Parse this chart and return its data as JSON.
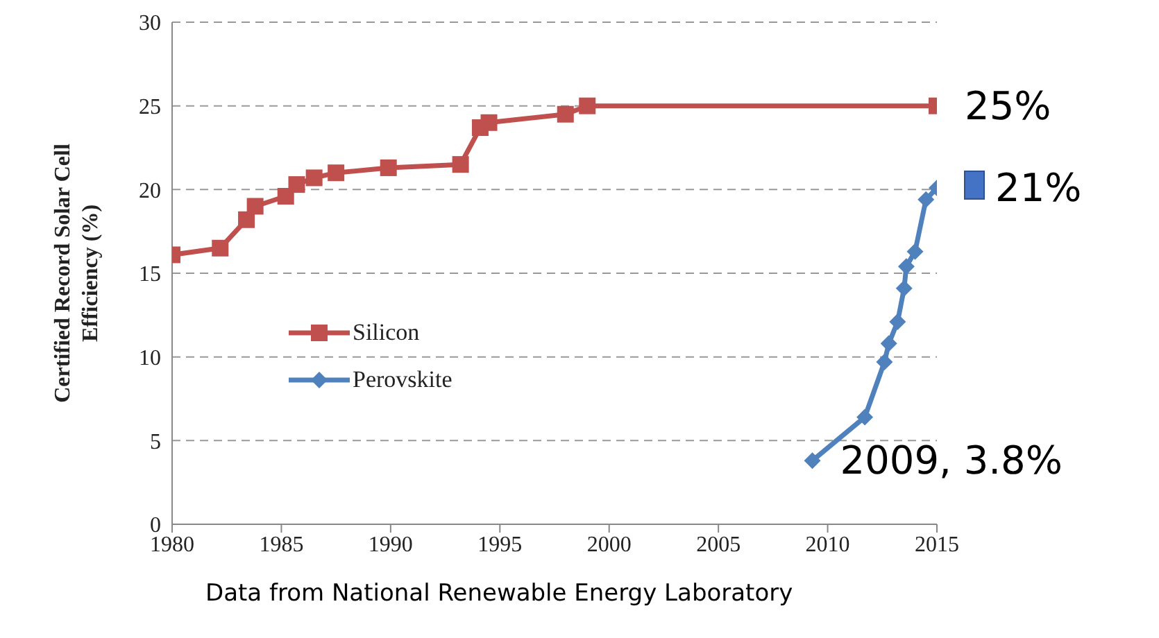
{
  "chart_data": {
    "type": "line",
    "ylabel": "Certified Record Solar Cell Efficiency (%)",
    "xlim": [
      1980,
      2015
    ],
    "xticks": [
      1980,
      1985,
      1990,
      1995,
      2000,
      2005,
      2010,
      2015
    ],
    "ylim": [
      0,
      30
    ],
    "yticks": [
      0,
      5,
      10,
      15,
      20,
      25,
      30
    ],
    "grid": "y",
    "legend": "left",
    "line_style": "solid",
    "series": [
      {
        "name": "Silicon",
        "color": "#c0504d",
        "marker": "square",
        "x": [
          1980,
          1982.2,
          1983.4,
          1983.8,
          1985.2,
          1985.7,
          1986.5,
          1987.5,
          1989.9,
          1993.2,
          1994.1,
          1994.5,
          1998,
          1999,
          2015
        ],
        "values": [
          16.1,
          16.5,
          18.2,
          19,
          19.6,
          20.3,
          20.7,
          21,
          21.3,
          21.5,
          23.7,
          24,
          24.5,
          25,
          25
        ]
      },
      {
        "name": "Perovskite",
        "color": "#4f81bd",
        "marker": "diamond",
        "x": [
          2009.3,
          2011.7,
          2012.6,
          2012.8,
          2013.2,
          2013.5,
          2013.6,
          2014,
          2014.5,
          2015
        ],
        "values": [
          3.8,
          6.4,
          9.7,
          10.8,
          12.1,
          14.1,
          15.4,
          16.3,
          19.4,
          20.1
        ]
      }
    ],
    "annotations": [
      "25%",
      "21%",
      "2009, 3.8%",
      "Data from National Renewable Energy Laboratory"
    ]
  }
}
